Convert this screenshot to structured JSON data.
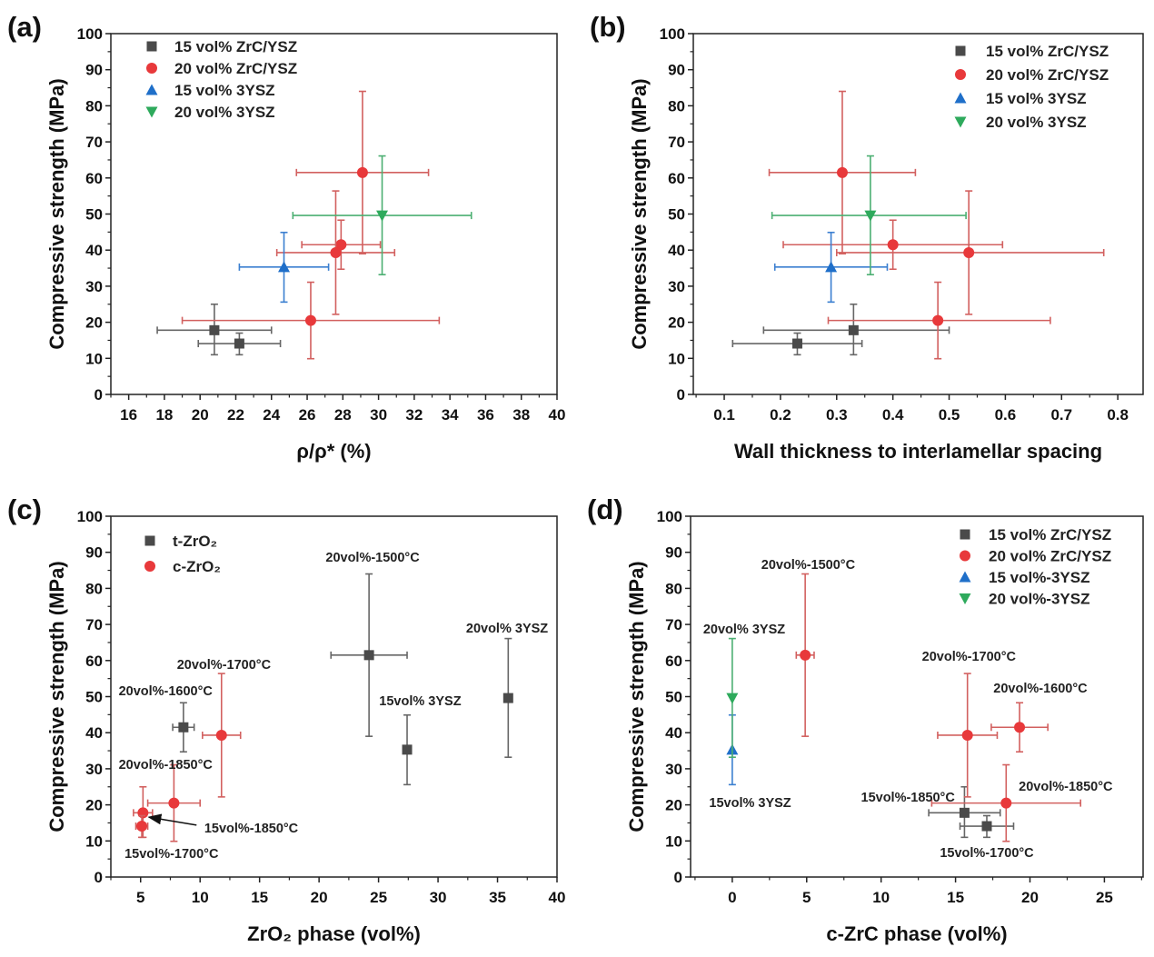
{
  "colors": {
    "gray": "#4a4a4a",
    "red": "#e8393b",
    "blue": "#1f6fc9",
    "green": "#2eaa5c",
    "gray_err": "#666666",
    "red_err": "#d2605f",
    "blue_err": "#3b7fd0",
    "green_err": "#4caf72"
  },
  "chart_data": [
    {
      "type": "scatter",
      "panel_label": "(a)",
      "xlabel": "ρ/ρ* (%)",
      "ylabel": "Compressive strength (MPa)",
      "xlim": [
        15,
        40
      ],
      "ylim": [
        0,
        100
      ],
      "xticks": [
        16,
        18,
        20,
        22,
        24,
        26,
        28,
        30,
        32,
        34,
        36,
        38,
        40
      ],
      "yticks": [
        0,
        10,
        20,
        30,
        40,
        50,
        60,
        70,
        80,
        90,
        100
      ],
      "legend_position": "top-left",
      "series": [
        {
          "name": "15 vol% ZrC/YSZ",
          "marker": "square",
          "color": "gray",
          "points": [
            {
              "x": 20.8,
              "y": 17.8,
              "xerr": [
                17.6,
                24.0
              ],
              "yerr": [
                11.0,
                25.0
              ]
            },
            {
              "x": 22.2,
              "y": 14.1,
              "xerr": [
                19.9,
                24.5
              ],
              "yerr": [
                11.0,
                17.0
              ]
            }
          ]
        },
        {
          "name": "20 vol% ZrC/YSZ",
          "marker": "circle",
          "color": "red",
          "points": [
            {
              "x": 29.1,
              "y": 61.5,
              "xerr": [
                25.4,
                32.8
              ],
              "yerr": [
                39.0,
                84.0
              ]
            },
            {
              "x": 27.9,
              "y": 41.5,
              "xerr": [
                25.7,
                30.1
              ],
              "yerr": [
                34.7,
                48.3
              ]
            },
            {
              "x": 27.6,
              "y": 39.3,
              "xerr": [
                24.3,
                30.9
              ],
              "yerr": [
                22.2,
                56.4
              ]
            },
            {
              "x": 26.2,
              "y": 20.5,
              "xerr": [
                19.0,
                33.4
              ],
              "yerr": [
                9.9,
                31.1
              ]
            }
          ]
        },
        {
          "name": "15 vol% 3YSZ",
          "marker": "triangle-up",
          "color": "blue",
          "points": [
            {
              "x": 24.7,
              "y": 35.3,
              "xerr": [
                22.2,
                27.2
              ],
              "yerr": [
                25.6,
                44.9
              ]
            }
          ]
        },
        {
          "name": "20 vol% 3YSZ",
          "marker": "triangle-down",
          "color": "green",
          "points": [
            {
              "x": 30.2,
              "y": 49.6,
              "xerr": [
                25.2,
                35.2
              ],
              "yerr": [
                33.2,
                66.1
              ]
            }
          ]
        }
      ],
      "annotations": []
    },
    {
      "type": "scatter",
      "panel_label": "(b)",
      "xlabel": "Wall thickness to interlamellar spacing",
      "ylabel": "Compressive strength (MPa)",
      "xlim": [
        0.045,
        0.845
      ],
      "ylim": [
        0,
        100
      ],
      "xticks": [
        0.1,
        0.2,
        0.3,
        0.4,
        0.5,
        0.6,
        0.7,
        0.8
      ],
      "yticks": [
        0,
        10,
        20,
        30,
        40,
        50,
        60,
        70,
        80,
        90,
        100
      ],
      "legend_position": "top-right",
      "series": [
        {
          "name": "15 vol% ZrC/YSZ",
          "marker": "square",
          "color": "gray",
          "points": [
            {
              "x": 0.33,
              "y": 17.8,
              "xerr": [
                0.17,
                0.5
              ],
              "yerr": [
                11.0,
                25.0
              ]
            },
            {
              "x": 0.23,
              "y": 14.1,
              "xerr": [
                0.115,
                0.345
              ],
              "yerr": [
                11.0,
                17.0
              ]
            }
          ]
        },
        {
          "name": "20 vol% ZrC/YSZ",
          "marker": "circle",
          "color": "red",
          "points": [
            {
              "x": 0.31,
              "y": 61.5,
              "xerr": [
                0.18,
                0.44
              ],
              "yerr": [
                39.0,
                84.0
              ]
            },
            {
              "x": 0.4,
              "y": 41.5,
              "xerr": [
                0.205,
                0.595
              ],
              "yerr": [
                34.7,
                48.3
              ]
            },
            {
              "x": 0.535,
              "y": 39.3,
              "xerr": [
                0.3,
                0.775
              ],
              "yerr": [
                22.2,
                56.4
              ]
            },
            {
              "x": 0.48,
              "y": 20.5,
              "xerr": [
                0.285,
                0.68
              ],
              "yerr": [
                9.9,
                31.1
              ]
            }
          ]
        },
        {
          "name": "15 vol% 3YSZ",
          "marker": "triangle-up",
          "color": "blue",
          "points": [
            {
              "x": 0.29,
              "y": 35.3,
              "xerr": [
                0.19,
                0.39
              ],
              "yerr": [
                25.6,
                44.9
              ]
            }
          ]
        },
        {
          "name": "20 vol% 3YSZ",
          "marker": "triangle-down",
          "color": "green",
          "points": [
            {
              "x": 0.36,
              "y": 49.6,
              "xerr": [
                0.185,
                0.53
              ],
              "yerr": [
                33.2,
                66.1
              ]
            }
          ]
        }
      ],
      "annotations": []
    },
    {
      "type": "scatter",
      "panel_label": "(c)",
      "xlabel": "ZrO₂ phase (vol%)",
      "ylabel": "Compressive strength (MPa)",
      "xlim": [
        2.5,
        40
      ],
      "ylim": [
        0,
        100
      ],
      "xticks": [
        5,
        10,
        15,
        20,
        25,
        30,
        35,
        40
      ],
      "yticks": [
        0,
        10,
        20,
        30,
        40,
        50,
        60,
        70,
        80,
        90,
        100
      ],
      "legend_position": "top-left",
      "series": [
        {
          "name": "t-ZrO₂",
          "marker": "square",
          "color": "gray",
          "points": [
            {
              "x": 8.6,
              "y": 41.5,
              "xerr": [
                7.7,
                9.5
              ],
              "yerr": [
                34.7,
                48.3
              ]
            },
            {
              "x": 24.2,
              "y": 61.5,
              "xerr": [
                21.0,
                27.4
              ],
              "yerr": [
                39.0,
                84.0
              ]
            },
            {
              "x": 27.4,
              "y": 35.3,
              "xerr": null,
              "yerr": [
                25.6,
                44.9
              ]
            },
            {
              "x": 35.9,
              "y": 49.6,
              "xerr": null,
              "yerr": [
                33.2,
                66.1
              ]
            }
          ]
        },
        {
          "name": "c-ZrO₂",
          "marker": "circle",
          "color": "red",
          "points": [
            {
              "x": 11.8,
              "y": 39.3,
              "xerr": [
                10.2,
                13.4
              ],
              "yerr": [
                22.2,
                56.4
              ]
            },
            {
              "x": 7.8,
              "y": 20.5,
              "xerr": [
                5.6,
                10.0
              ],
              "yerr": [
                9.9,
                31.1
              ]
            },
            {
              "x": 5.2,
              "y": 17.8,
              "xerr": [
                4.4,
                6.0
              ],
              "yerr": [
                11.0,
                25.0
              ]
            },
            {
              "x": 5.1,
              "y": 14.1,
              "xerr": [
                4.6,
                5.6
              ],
              "yerr": [
                11.0,
                17.0
              ]
            }
          ]
        }
      ],
      "annotations": [
        {
          "text": "20vol%-1500°C",
          "x": 24.5,
          "y": 88.7
        },
        {
          "text": "20vol% 3YSZ",
          "x": 35.8,
          "y": 69.0
        },
        {
          "text": "20vol%-1700°C",
          "x": 12.0,
          "y": 59.0
        },
        {
          "text": "20vol%-1600°C",
          "x": 7.1,
          "y": 51.6
        },
        {
          "text": "15vol% 3YSZ",
          "x": 28.5,
          "y": 48.9
        },
        {
          "text": "20vol%-1850°C",
          "x": 7.1,
          "y": 31.2
        },
        {
          "text": "15vol%-1850°C",
          "x": 14.3,
          "y": 13.6,
          "arrow_from": [
            9.7,
            14.4
          ],
          "arrow_to": [
            5.7,
            16.6
          ]
        },
        {
          "text": "15vol%-1700°C",
          "x": 7.6,
          "y": 6.5
        }
      ]
    },
    {
      "type": "scatter",
      "panel_label": "(d)",
      "xlabel": "c-ZrC phase (vol%)",
      "ylabel": "Compressive strength (MPa)",
      "xlim": [
        -2.8,
        27.6
      ],
      "ylim": [
        0,
        100
      ],
      "xticks": [
        0,
        5,
        10,
        15,
        20,
        25
      ],
      "yticks": [
        0,
        10,
        20,
        30,
        40,
        50,
        60,
        70,
        80,
        90,
        100
      ],
      "legend_position": "top-right",
      "series": [
        {
          "name": "15 vol% ZrC/YSZ",
          "marker": "square",
          "color": "gray",
          "points": [
            {
              "x": 15.6,
              "y": 17.8,
              "xerr": [
                13.2,
                18.0
              ],
              "yerr": [
                11.0,
                25.0
              ]
            },
            {
              "x": 17.1,
              "y": 14.1,
              "xerr": [
                15.3,
                18.9
              ],
              "yerr": [
                11.0,
                17.0
              ]
            }
          ]
        },
        {
          "name": "20 vol% ZrC/YSZ",
          "marker": "circle",
          "color": "red",
          "points": [
            {
              "x": 4.9,
              "y": 61.5,
              "xerr": [
                4.3,
                5.5
              ],
              "yerr": [
                39.0,
                84.0
              ]
            },
            {
              "x": 19.3,
              "y": 41.5,
              "xerr": [
                17.4,
                21.2
              ],
              "yerr": [
                34.7,
                48.3
              ]
            },
            {
              "x": 15.8,
              "y": 39.3,
              "xerr": [
                13.8,
                17.8
              ],
              "yerr": [
                22.2,
                56.4
              ]
            },
            {
              "x": 18.4,
              "y": 20.5,
              "xerr": [
                13.4,
                23.4
              ],
              "yerr": [
                9.9,
                31.1
              ]
            }
          ]
        },
        {
          "name": "15 vol%-3YSZ",
          "marker": "triangle-up",
          "color": "blue",
          "points": [
            {
              "x": 0,
              "y": 35.3,
              "xerr": null,
              "yerr": [
                25.6,
                44.9
              ]
            }
          ]
        },
        {
          "name": "20 vol%-3YSZ",
          "marker": "triangle-down",
          "color": "green",
          "points": [
            {
              "x": 0,
              "y": 49.6,
              "xerr": null,
              "yerr": [
                33.2,
                66.1
              ]
            }
          ]
        }
      ],
      "annotations": [
        {
          "text": "20vol%-1500°C",
          "x": 5.1,
          "y": 86.6
        },
        {
          "text": "20vol% 3YSZ",
          "x": 0.8,
          "y": 68.8
        },
        {
          "text": "15vol% 3YSZ",
          "x": 1.2,
          "y": 20.7
        },
        {
          "text": "20vol%-1700°C",
          "x": 15.9,
          "y": 61.2
        },
        {
          "text": "20vol%-1600°C",
          "x": 20.7,
          "y": 52.4
        },
        {
          "text": "20vol%-1850°C",
          "x": 22.4,
          "y": 25.2
        },
        {
          "text": "15vol%-1850°C",
          "x": 11.8,
          "y": 22.2
        },
        {
          "text": "15vol%-1700°C",
          "x": 17.1,
          "y": 6.8
        }
      ]
    }
  ]
}
